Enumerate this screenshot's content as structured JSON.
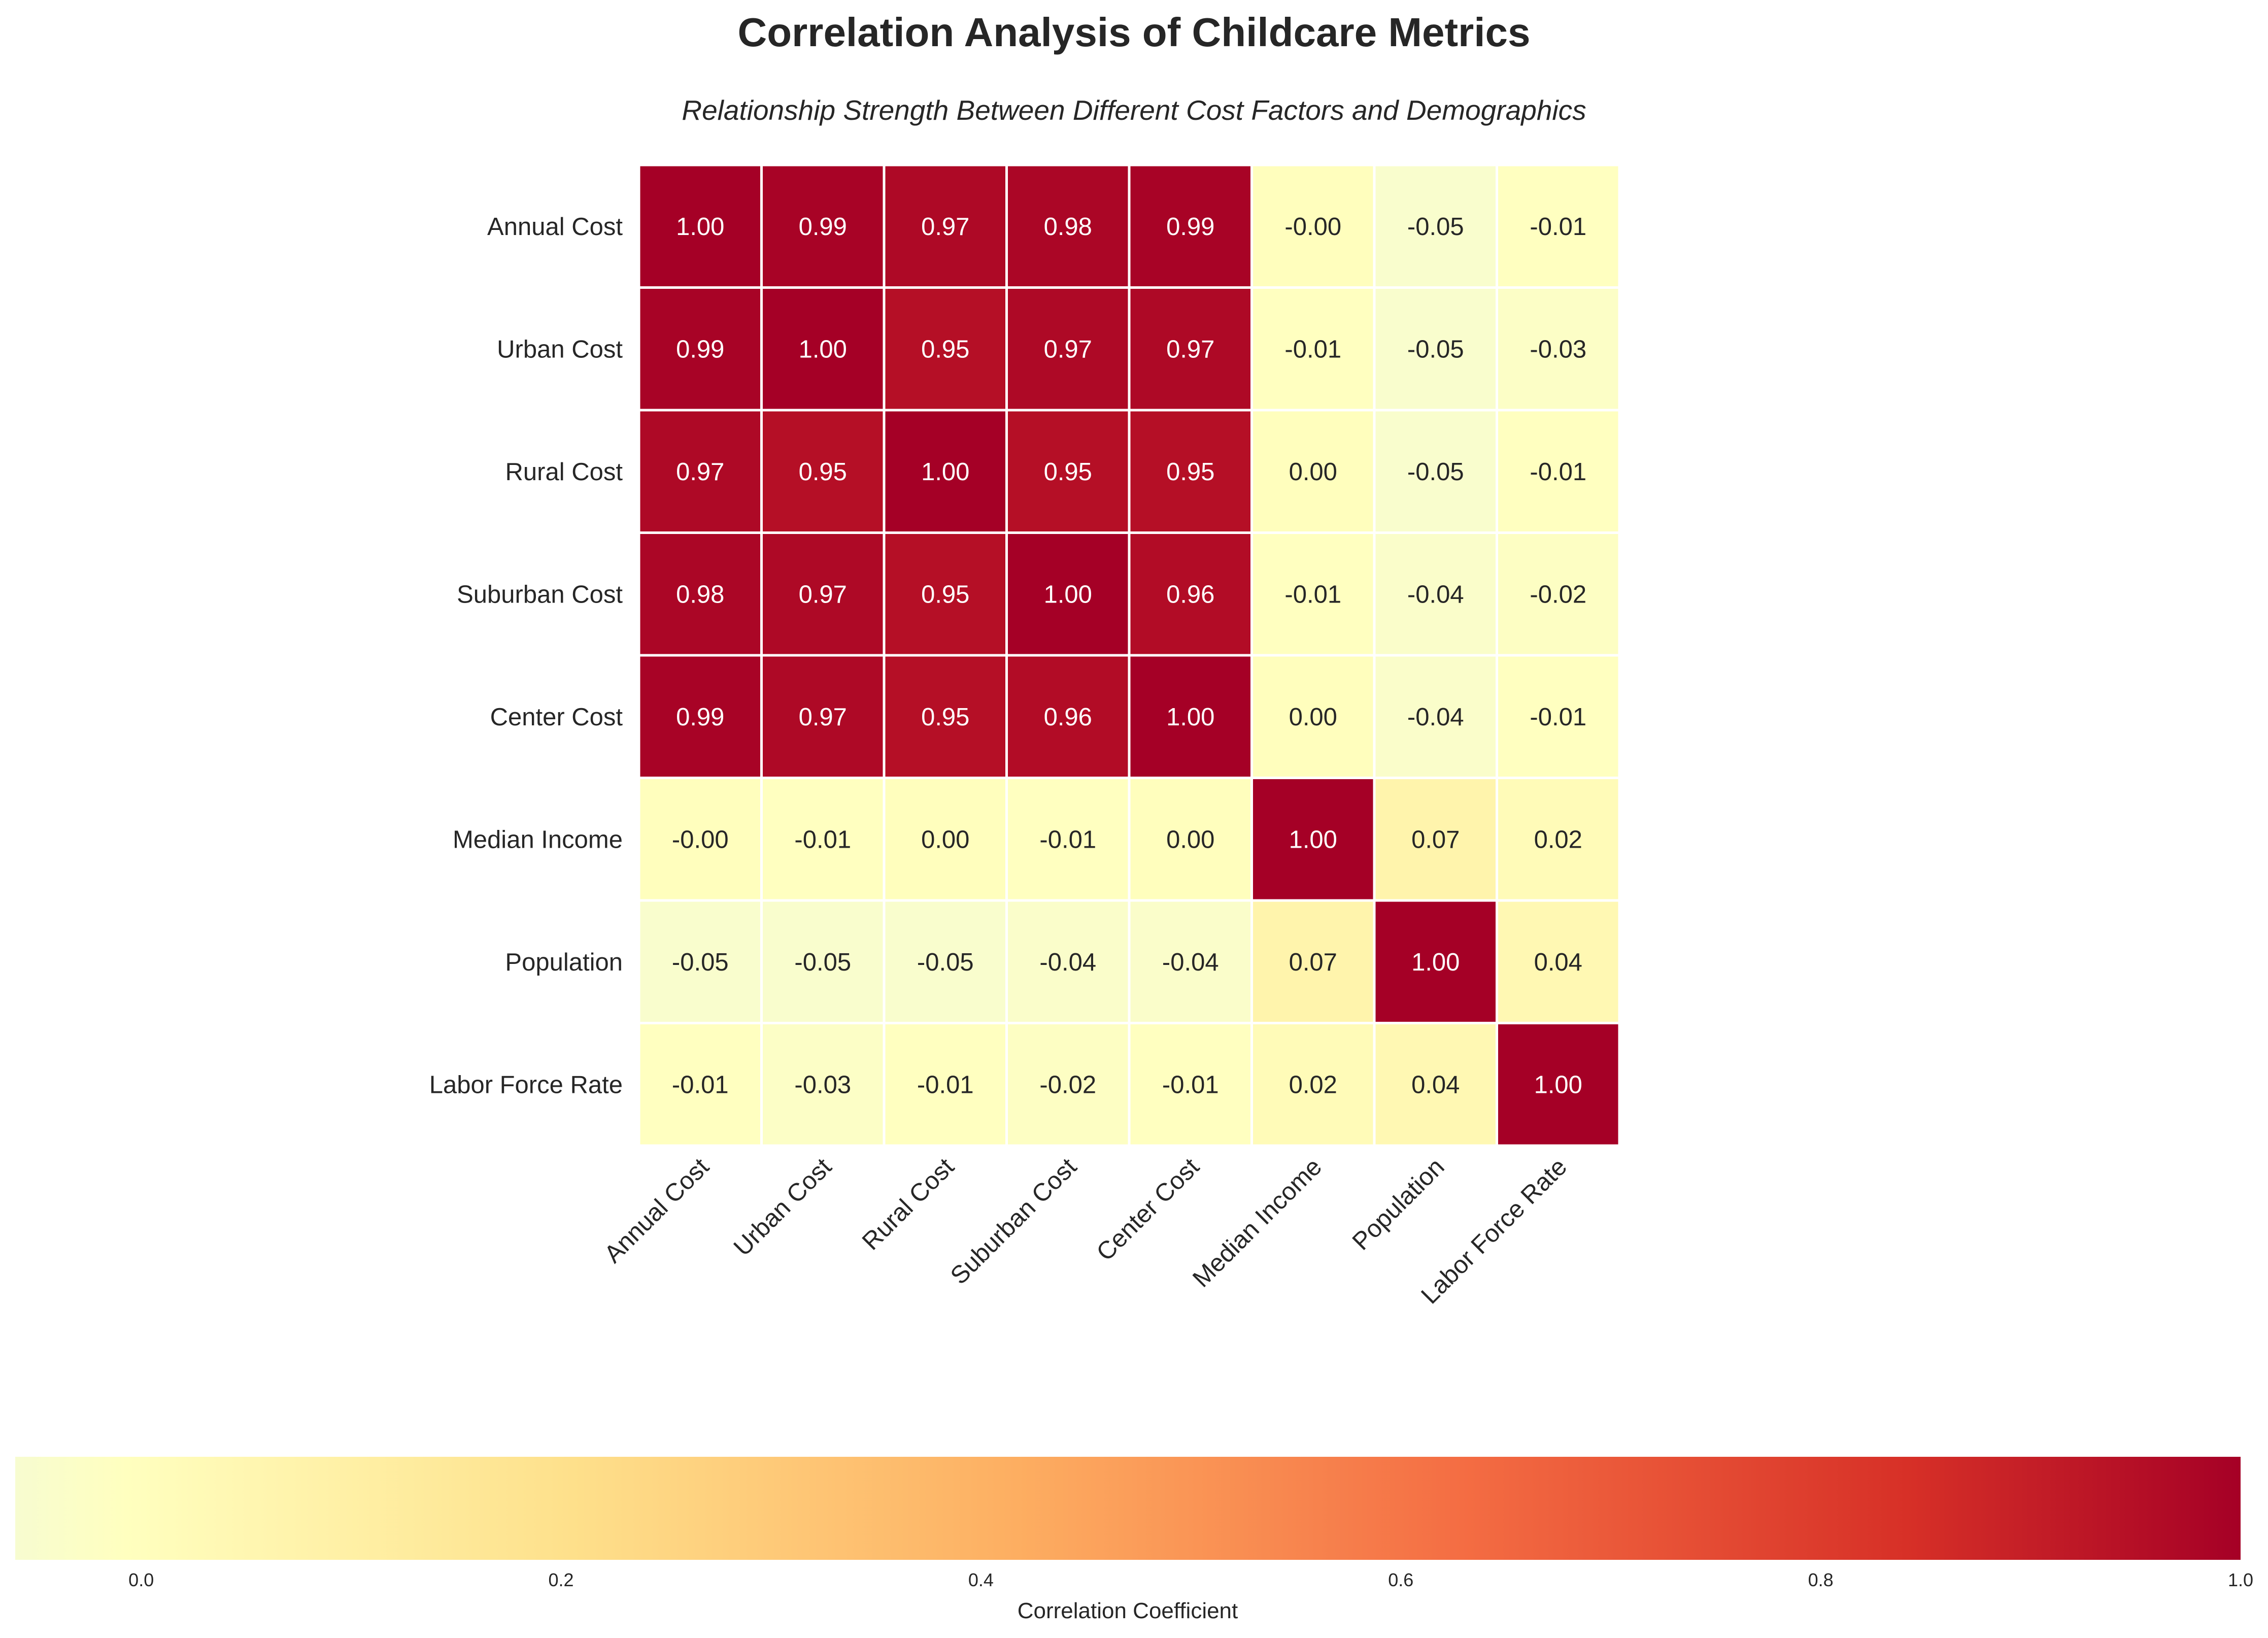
{
  "chart_data": {
    "type": "heatmap",
    "title": "Correlation Analysis of Childcare Metrics",
    "subtitle": "Relationship Strength Between Different Cost Factors and Demographics",
    "row_labels": [
      "Annual Cost",
      "Urban Cost",
      "Rural Cost",
      "Suburban Cost",
      "Center Cost",
      "Median Income",
      "Population",
      "Labor Force Rate"
    ],
    "col_labels": [
      "Annual Cost",
      "Urban Cost",
      "Rural Cost",
      "Suburban Cost",
      "Center Cost",
      "Median Income",
      "Population",
      "Labor Force Rate"
    ],
    "values": [
      [
        1.0,
        0.99,
        0.97,
        0.98,
        0.99,
        -0.0,
        -0.05,
        -0.01
      ],
      [
        0.99,
        1.0,
        0.95,
        0.97,
        0.97,
        -0.01,
        -0.05,
        -0.03
      ],
      [
        0.97,
        0.95,
        1.0,
        0.95,
        0.95,
        0.0,
        -0.05,
        -0.01
      ],
      [
        0.98,
        0.97,
        0.95,
        1.0,
        0.96,
        -0.01,
        -0.04,
        -0.02
      ],
      [
        0.99,
        0.97,
        0.95,
        0.96,
        1.0,
        0.0,
        -0.04,
        -0.01
      ],
      [
        -0.0,
        -0.01,
        0.0,
        -0.01,
        0.0,
        1.0,
        0.07,
        0.02
      ],
      [
        -0.05,
        -0.05,
        -0.05,
        -0.04,
        -0.04,
        0.07,
        1.0,
        0.04
      ],
      [
        -0.01,
        -0.03,
        -0.01,
        -0.02,
        -0.01,
        0.02,
        0.04,
        1.0
      ]
    ],
    "value_labels": [
      [
        "1.00",
        "0.99",
        "0.97",
        "0.98",
        "0.99",
        "-0.00",
        "-0.05",
        "-0.01"
      ],
      [
        "0.99",
        "1.00",
        "0.95",
        "0.97",
        "0.97",
        "-0.01",
        "-0.05",
        "-0.03"
      ],
      [
        "0.97",
        "0.95",
        "1.00",
        "0.95",
        "0.95",
        "0.00",
        "-0.05",
        "-0.01"
      ],
      [
        "0.98",
        "0.97",
        "0.95",
        "1.00",
        "0.96",
        "-0.01",
        "-0.04",
        "-0.02"
      ],
      [
        "0.99",
        "0.97",
        "0.95",
        "0.96",
        "1.00",
        "0.00",
        "-0.04",
        "-0.01"
      ],
      [
        "-0.00",
        "-0.01",
        "0.00",
        "-0.01",
        "0.00",
        "1.00",
        "0.07",
        "0.02"
      ],
      [
        "-0.05",
        "-0.05",
        "-0.05",
        "-0.04",
        "-0.04",
        "0.07",
        "1.00",
        "0.04"
      ],
      [
        "-0.01",
        "-0.03",
        "-0.01",
        "-0.02",
        "-0.01",
        "0.02",
        "0.04",
        "1.00"
      ]
    ],
    "colorbar": {
      "label": "Correlation Coefficient",
      "ticks": [
        "0.0",
        "0.2",
        "0.4",
        "0.6",
        "0.8",
        "1.0"
      ],
      "range": [
        -0.06,
        1.0
      ],
      "orientation": "horizontal",
      "placement": "bottom"
    },
    "colormap": "YlOrRd-like",
    "colors": {
      "low": "#f7fcd0",
      "mid_low": "#ffffbf",
      "mid": "#fdae61",
      "high": "#a50026"
    }
  }
}
